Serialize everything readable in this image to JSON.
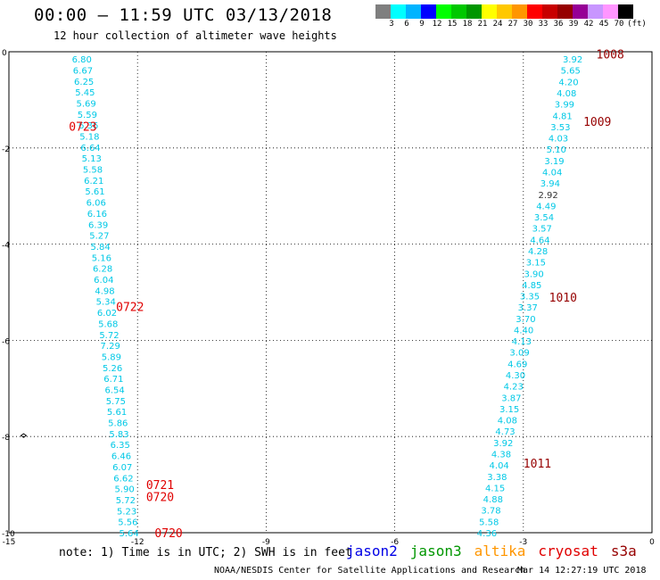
{
  "header": {
    "title": "00:00 – 11:59 UTC 03/13/2018",
    "subtitle": "12 hour collection of altimeter wave heights"
  },
  "colorbar": {
    "unit": "(ft)",
    "colors": [
      "#7f7f7f",
      "#00ffff",
      "#00b4ff",
      "#0000ff",
      "#00ff00",
      "#00c800",
      "#009600",
      "#ffff00",
      "#ffc800",
      "#ff9600",
      "#ff0000",
      "#c80000",
      "#960000",
      "#960096",
      "#c896ff",
      "#ff96ff",
      "#000000"
    ],
    "labels": [
      "3",
      "6",
      "9",
      "12",
      "15",
      "18",
      "21",
      "24",
      "27",
      "30",
      "33",
      "36",
      "39",
      "42",
      "45",
      "70"
    ]
  },
  "map": {
    "xlim": [
      -15,
      0
    ],
    "ylim": [
      -10,
      0
    ],
    "x_ticks": [
      -15,
      -12,
      -9,
      -6,
      -3,
      0
    ],
    "y_ticks": [
      0,
      -2,
      -4,
      -6,
      -8,
      -10
    ],
    "grid": true
  },
  "tracks": [
    {
      "name": "west",
      "values": [
        "6.80",
        "6.67",
        "6.25",
        "5.45",
        "5.69",
        "5.59",
        "6.36",
        "5.18",
        "6.64",
        "5.13",
        "5.58",
        "6.21",
        "5.61",
        "6.06",
        "6.16",
        "6.39",
        "5.27",
        "5.84",
        "5.16",
        "6.28",
        "6.04",
        "4.98",
        "5.34",
        "6.02",
        "5.68",
        "5.72",
        "7.29",
        "5.89",
        "5.26",
        "6.71",
        "6.54",
        "5.75",
        "5.61",
        "5.86",
        "5.83",
        "6.35",
        "6.46",
        "6.07",
        "6.62",
        "5.90",
        "5.72",
        "5.23",
        "5.56",
        "5.64"
      ],
      "color": "#00c8e6",
      "lon_start": -13.3,
      "lat_start": -0.15,
      "lon_end": -12.2,
      "lat_end": -10.0
    },
    {
      "name": "east",
      "values": [
        "3.92",
        "5.65",
        "4.20",
        "4.08",
        "3.99",
        "4.81",
        "3.53",
        "4.03",
        "5.10",
        "3.19",
        "4.04",
        "3.94",
        "2.92",
        "4.49",
        "3.54",
        "3.57",
        "4.64",
        "4.28",
        "3.15",
        "3.90",
        "4.85",
        "3.35",
        "3.37",
        "3.70",
        "4.40",
        "4.13",
        "3.09",
        "4.69",
        "4.30",
        "4.23",
        "3.87",
        "3.15",
        "4.08",
        "4.73",
        "3.92",
        "4.38",
        "4.04",
        "3.38",
        "4.15",
        "4.88",
        "3.78",
        "5.58",
        "4.36"
      ],
      "color": "#00c8e6",
      "lon_start": -1.85,
      "lat_start": -0.15,
      "lon_end": -3.85,
      "lat_end": -10.0
    }
  ],
  "time_labels": [
    {
      "text": "0723",
      "color": "#e00000",
      "lon": -13.6,
      "lat": -1.55
    },
    {
      "text": "0722",
      "color": "#e00000",
      "lon": -12.5,
      "lat": -5.3
    },
    {
      "text": "0721",
      "color": "#e00000",
      "lon": -11.8,
      "lat": -9.0
    },
    {
      "text": "0720",
      "color": "#e00000",
      "lon": -11.8,
      "lat": -9.25
    },
    {
      "text": "0720",
      "color": "#e00000",
      "lon": -11.6,
      "lat": -10.0
    },
    {
      "text": "1008",
      "color": "#960000",
      "lon": -1.3,
      "lat": -0.05
    },
    {
      "text": "1009",
      "color": "#960000",
      "lon": -1.6,
      "lat": -1.45
    },
    {
      "text": "1010",
      "color": "#960000",
      "lon": -2.4,
      "lat": -5.1
    },
    {
      "text": "1011",
      "color": "#960000",
      "lon": -3.0,
      "lat": -8.55
    }
  ],
  "dark_value_indices": {
    "east": [
      12
    ]
  },
  "note": "note: 1) Time is in UTC; 2) SWH is in feet",
  "legend": [
    {
      "name": "jason2",
      "color": "#0000e6"
    },
    {
      "name": "jason3",
      "color": "#009600"
    },
    {
      "name": "altika",
      "color": "#ff9600"
    },
    {
      "name": "cryosat",
      "color": "#e00000"
    },
    {
      "name": "s3a",
      "color": "#960000"
    }
  ],
  "footer": {
    "credit": "NOAA/NESDIS Center for Satellite Applications and Research",
    "timestamp": "Mar 14 12:27:19 UTC 2018"
  }
}
